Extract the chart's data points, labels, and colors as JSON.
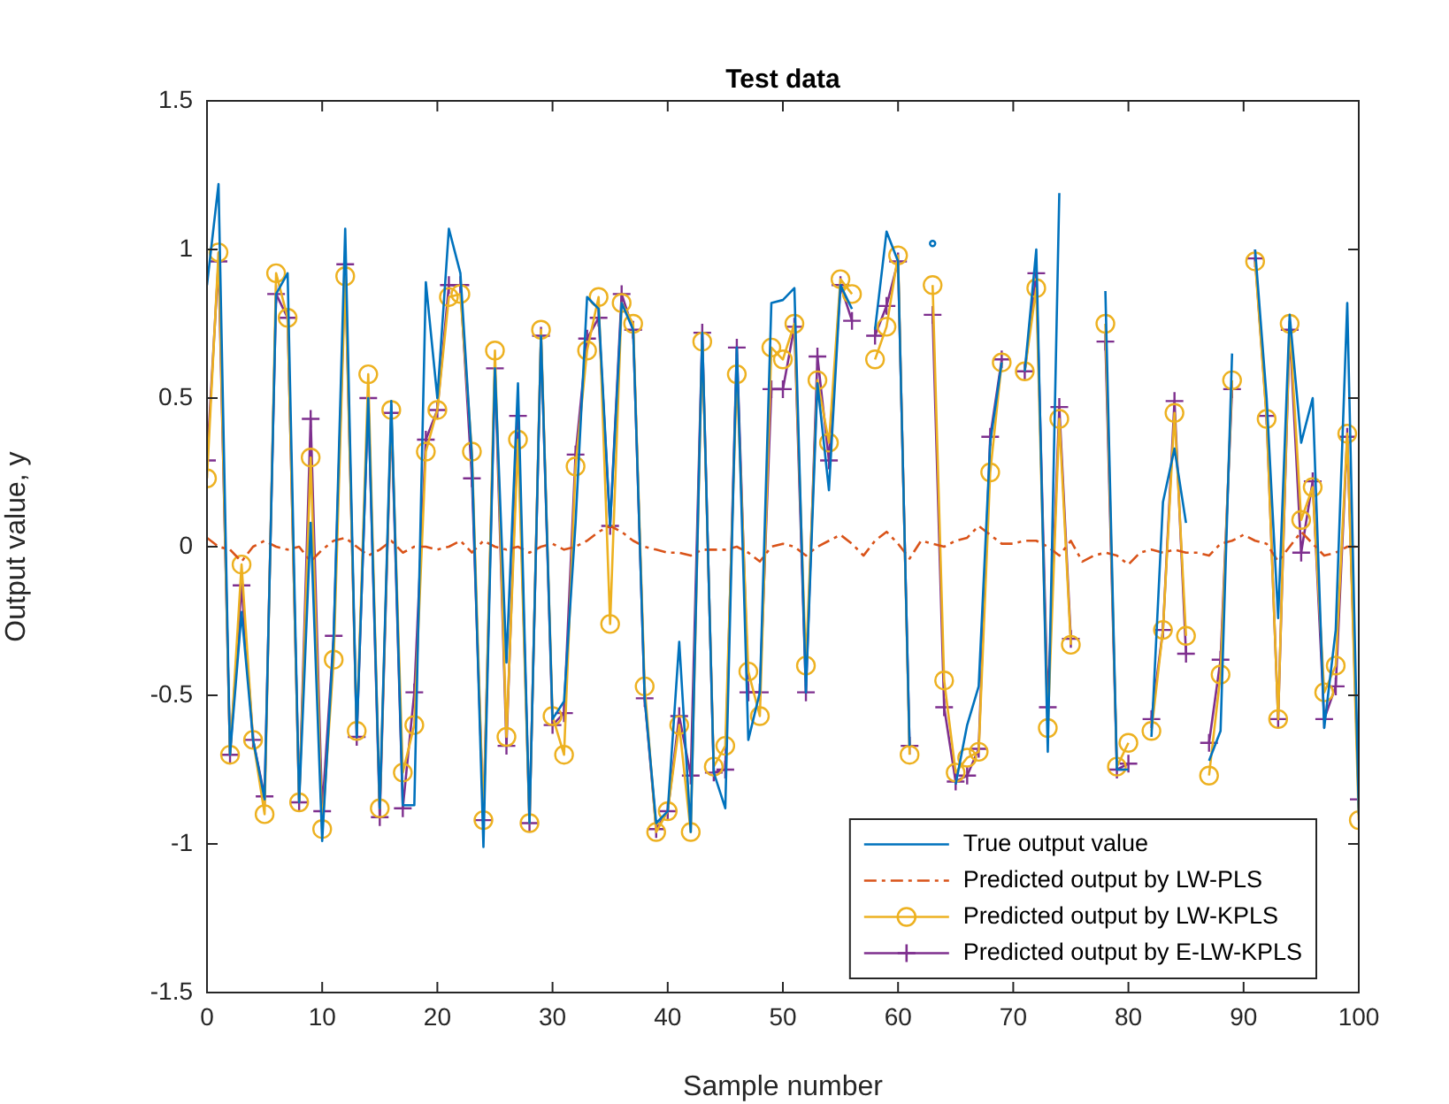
{
  "chart_data": {
    "type": "line",
    "title": "Test data",
    "xlabel": "Sample number",
    "ylabel": "Output value, y",
    "x": [
      0,
      1,
      2,
      3,
      4,
      5,
      6,
      7,
      8,
      9,
      10,
      11,
      12,
      13,
      14,
      15,
      16,
      17,
      18,
      19,
      20,
      21,
      22,
      23,
      24,
      25,
      26,
      27,
      28,
      29,
      30,
      31,
      32,
      33,
      34,
      35,
      36,
      37,
      38,
      39,
      40,
      41,
      42,
      43,
      44,
      45,
      46,
      47,
      48,
      49,
      50,
      51,
      52,
      53,
      54,
      55,
      56,
      57,
      58,
      59,
      60,
      61,
      62,
      63,
      64,
      65,
      66,
      67,
      68,
      69,
      70,
      71,
      72,
      73,
      74,
      75,
      76,
      77,
      78,
      79,
      80,
      81,
      82,
      83,
      84,
      85,
      86,
      87,
      88,
      89,
      90,
      91,
      92,
      93,
      94,
      95,
      96,
      97,
      98,
      99,
      100
    ],
    "xlim": [
      0,
      100
    ],
    "xticks": [
      0,
      10,
      20,
      30,
      40,
      50,
      60,
      70,
      80,
      90,
      100
    ],
    "ylim": [
      -1.5,
      1.5
    ],
    "yticks": [
      -1.5,
      -1,
      -0.5,
      0,
      0.5,
      1,
      1.5
    ],
    "grid": false,
    "legend": "bottom right",
    "series": [
      {
        "name": "True output value",
        "color": "#0072bd",
        "marker": "none",
        "line_style": "solid",
        "values": [
          0.88,
          1.22,
          -0.7,
          -0.22,
          -0.65,
          -0.85,
          0.85,
          0.92,
          -0.86,
          0.08,
          -0.99,
          -0.3,
          1.07,
          -0.64,
          0.5,
          -0.88,
          0.49,
          -0.87,
          -0.87,
          0.89,
          0.5,
          1.07,
          0.92,
          0.3,
          -1.01,
          0.6,
          -0.39,
          0.55,
          -0.93,
          0.71,
          -0.58,
          -0.52,
          0.08,
          0.84,
          0.8,
          0.07,
          0.82,
          0.73,
          -0.51,
          -0.93,
          -0.89,
          -0.32,
          -0.96,
          0.72,
          -0.76,
          -0.88,
          0.67,
          -0.65,
          -0.49,
          0.82,
          0.83,
          0.87,
          -0.49,
          0.55,
          0.19,
          0.88,
          0.8,
          null,
          0.73,
          1.06,
          0.96,
          -0.67,
          null,
          1.02,
          null,
          -0.8,
          -0.6,
          -0.47,
          0.35,
          0.62,
          null,
          0.59,
          1.0,
          -0.69,
          1.19,
          null,
          null,
          null,
          0.86,
          -0.75,
          -0.75,
          null,
          -0.64,
          0.15,
          0.33,
          0.08,
          null,
          -0.72,
          -0.62,
          0.65,
          null,
          1.0,
          0.5,
          -0.24,
          0.78,
          0.35,
          0.5,
          -0.61,
          -0.28,
          0.82,
          -0.9
        ]
      },
      {
        "name": "Predicted output by LW-PLS",
        "color": "#d95319",
        "marker": "none",
        "line_style": "dashed",
        "values": [
          0.03,
          0.0,
          -0.01,
          -0.05,
          0.0,
          0.02,
          0.0,
          -0.01,
          0.0,
          -0.05,
          -0.01,
          0.02,
          0.03,
          0.0,
          -0.03,
          -0.01,
          0.02,
          -0.02,
          0.0,
          0.0,
          -0.01,
          0.0,
          0.02,
          -0.02,
          0.02,
          0.0,
          -0.01,
          0.0,
          -0.02,
          0.0,
          0.01,
          -0.01,
          0.0,
          0.02,
          0.05,
          0.07,
          0.05,
          0.02,
          0.0,
          -0.01,
          -0.02,
          -0.02,
          -0.03,
          -0.01,
          -0.01,
          -0.01,
          0.0,
          -0.02,
          -0.05,
          0.0,
          0.01,
          0.0,
          -0.03,
          0.0,
          0.02,
          0.04,
          0.01,
          -0.03,
          0.02,
          0.05,
          0.01,
          -0.04,
          0.02,
          0.01,
          0.0,
          0.02,
          0.03,
          0.07,
          0.04,
          0.01,
          0.01,
          0.02,
          0.02,
          0.0,
          -0.03,
          0.02,
          -0.05,
          -0.03,
          -0.02,
          -0.03,
          -0.06,
          -0.02,
          -0.01,
          -0.02,
          -0.01,
          -0.02,
          -0.02,
          -0.03,
          0.01,
          0.02,
          0.04,
          0.02,
          0.01,
          -0.05,
          0.0,
          0.05,
          0.01,
          -0.03,
          -0.02,
          0.0,
          0.0
        ]
      },
      {
        "name": "Predicted output by LW-KPLS",
        "color": "#edb120",
        "marker": "circle",
        "line_style": "solid",
        "values": [
          0.23,
          0.99,
          -0.7,
          -0.06,
          -0.65,
          -0.9,
          0.92,
          0.77,
          -0.86,
          0.3,
          -0.95,
          -0.38,
          0.91,
          -0.62,
          0.58,
          -0.88,
          0.46,
          -0.76,
          -0.6,
          0.32,
          0.46,
          0.84,
          0.85,
          0.32,
          -0.92,
          0.66,
          -0.64,
          0.36,
          -0.93,
          0.73,
          -0.57,
          -0.7,
          0.27,
          0.66,
          0.84,
          -0.26,
          0.82,
          0.75,
          -0.47,
          -0.96,
          -0.89,
          -0.6,
          -0.96,
          0.69,
          -0.74,
          -0.67,
          0.58,
          -0.42,
          -0.57,
          0.67,
          0.63,
          0.75,
          -0.4,
          0.56,
          0.35,
          0.9,
          0.85,
          null,
          0.63,
          0.74,
          0.98,
          -0.7,
          null,
          0.88,
          -0.45,
          -0.76,
          -0.71,
          -0.69,
          0.25,
          0.62,
          null,
          0.59,
          0.87,
          -0.61,
          0.43,
          -0.33,
          null,
          null,
          0.75,
          -0.74,
          -0.66,
          null,
          -0.62,
          -0.28,
          0.45,
          -0.3,
          null,
          -0.77,
          -0.43,
          0.56,
          null,
          0.96,
          0.43,
          -0.58,
          0.75,
          0.09,
          0.2,
          -0.49,
          -0.4,
          0.38,
          -0.92
        ]
      },
      {
        "name": "Predicted output by E-LW-KPLS",
        "color": "#7e2f8e",
        "marker": "cross",
        "line_style": "solid",
        "values": [
          0.29,
          0.96,
          -0.7,
          -0.13,
          -0.65,
          -0.84,
          0.85,
          0.77,
          -0.86,
          0.43,
          -0.89,
          -0.3,
          0.95,
          -0.64,
          0.5,
          -0.91,
          0.45,
          -0.88,
          -0.49,
          0.36,
          0.46,
          0.88,
          0.88,
          0.23,
          -0.92,
          0.6,
          -0.67,
          0.44,
          -0.93,
          0.71,
          -0.6,
          -0.56,
          0.31,
          0.7,
          0.77,
          0.07,
          0.85,
          0.73,
          -0.51,
          -0.95,
          -0.89,
          -0.57,
          -0.77,
          0.72,
          -0.76,
          -0.75,
          0.67,
          -0.49,
          -0.49,
          0.53,
          0.53,
          0.74,
          -0.49,
          0.64,
          0.29,
          0.88,
          0.76,
          null,
          0.71,
          0.81,
          0.96,
          -0.67,
          null,
          0.78,
          -0.54,
          -0.79,
          -0.77,
          -0.68,
          0.37,
          0.63,
          null,
          0.59,
          0.92,
          -0.54,
          0.47,
          -0.31,
          null,
          null,
          0.69,
          -0.75,
          -0.73,
          null,
          -0.58,
          -0.28,
          0.49,
          -0.36,
          null,
          -0.66,
          -0.38,
          0.53,
          null,
          0.97,
          0.44,
          -0.58,
          0.73,
          -0.02,
          0.22,
          -0.58,
          -0.47,
          0.37,
          -0.85
        ]
      }
    ]
  }
}
